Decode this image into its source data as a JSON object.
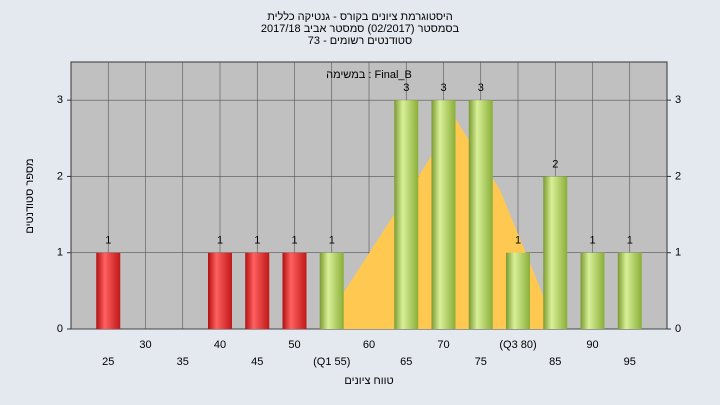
{
  "chart_data": {
    "type": "bar",
    "title": "היסטוגרמת ציונים בקורס - גנטיקה כללית",
    "subtitle": "בסמסטר  (02/2017)  סמסטר אביב 2017/18",
    "subtitle2": "סטודנטים רשומים - 73",
    "annotation": "במשימה : Final_B",
    "x_label": "טווח ציונים",
    "y_label": "מספר סטודנטים",
    "categories": [
      "25",
      "30",
      "35",
      "40",
      "45",
      "50",
      "(Q1 55)",
      "60",
      "65",
      "70",
      "75",
      "(Q3 80)",
      "85",
      "90",
      "95"
    ],
    "values": [
      1,
      0,
      0,
      1,
      1,
      1,
      1,
      0,
      3,
      3,
      3,
      1,
      2,
      1,
      1
    ],
    "colors": [
      "red",
      "red",
      "red",
      "red",
      "red",
      "red",
      "green",
      "green",
      "green",
      "green",
      "green",
      "green",
      "green",
      "green",
      "green"
    ],
    "ylim": [
      0,
      3.5
    ],
    "yticks": [
      0,
      1,
      2,
      3
    ],
    "grid": true
  }
}
